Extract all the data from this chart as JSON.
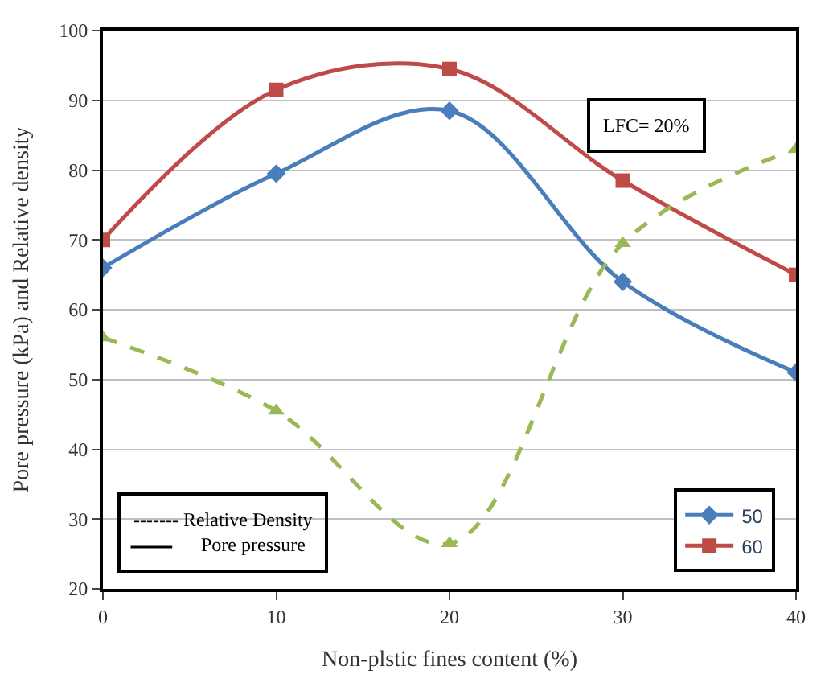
{
  "chart_data": {
    "type": "line",
    "xlabel": "Non-plstic fines content (%)",
    "ylabel": "Pore pressure (kPa) and Relative density",
    "x": [
      0,
      10,
      20,
      30,
      40
    ],
    "series": [
      {
        "name": "50",
        "color": "#4a7ebb",
        "values": [
          66,
          79.5,
          88.5,
          64,
          51
        ],
        "marker": "diamond",
        "line_style": "solid"
      },
      {
        "name": "60",
        "color": "#be4b48",
        "values": [
          70,
          91.5,
          94.5,
          78.5,
          65
        ],
        "marker": "square",
        "line_style": "solid"
      },
      {
        "color": "#98b954",
        "values": [
          56,
          45.5,
          26.5,
          69.5,
          83
        ],
        "marker": "triangle",
        "line_style": "dashed"
      }
    ],
    "xlim": [
      0,
      40
    ],
    "xticks": [
      0,
      10,
      20,
      30,
      40
    ],
    "ylim": [
      20,
      100
    ],
    "yticks": [
      20,
      30,
      40,
      50,
      60,
      70,
      80,
      90,
      100
    ],
    "grid": "y",
    "legend": "bottom right",
    "annotations": [
      "LFC= 20%",
      "------- Relative Density",
      "Pore pressure"
    ]
  }
}
